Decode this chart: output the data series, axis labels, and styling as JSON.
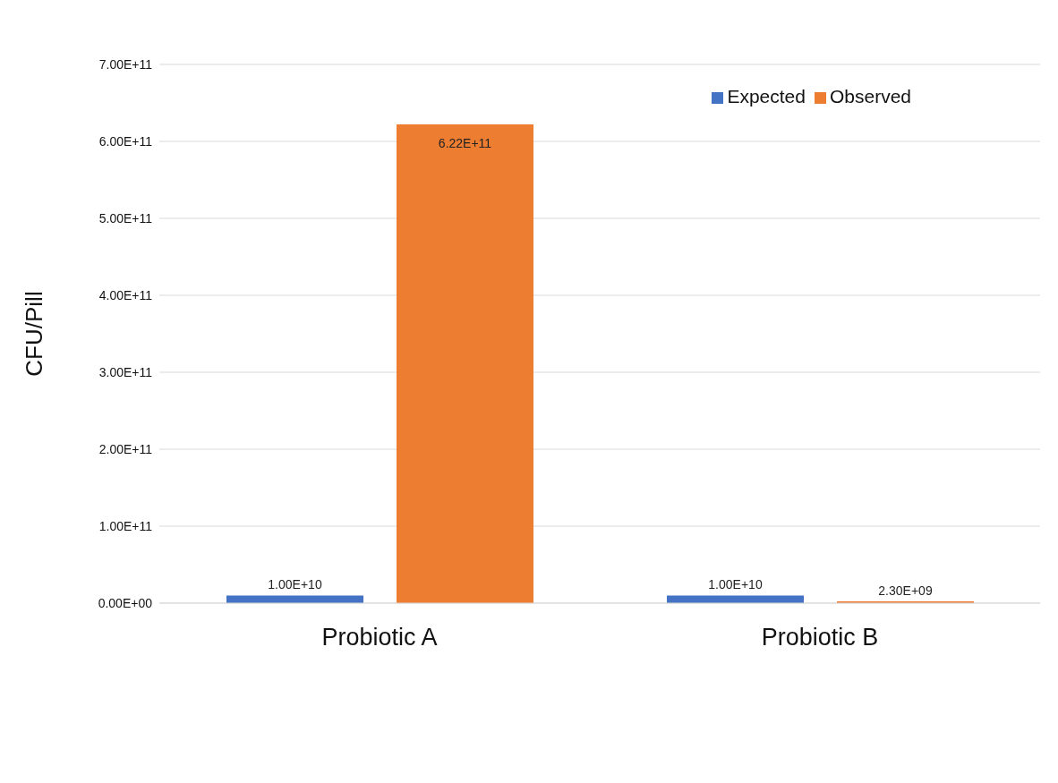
{
  "chart_data": {
    "type": "bar",
    "ylabel": "CFU/Pill",
    "categories": [
      "Probiotic A",
      "Probiotic B"
    ],
    "series": [
      {
        "name": "Expected",
        "color": "#4472c4",
        "values": [
          10000000000,
          10000000000
        ],
        "value_labels": [
          "1.00E+10",
          "1.00E+10"
        ]
      },
      {
        "name": "Observed",
        "color": "#ed7d31",
        "values": [
          622000000000,
          2300000000
        ],
        "value_labels": [
          "6.22E+11",
          "2.30E+09"
        ]
      }
    ],
    "ylim": [
      0,
      700000000000
    ],
    "yticks": [
      {
        "value": 0,
        "label": "0.00E+00"
      },
      {
        "value": 100000000000,
        "label": "1.00E+11"
      },
      {
        "value": 200000000000,
        "label": "2.00E+11"
      },
      {
        "value": 300000000000,
        "label": "3.00E+11"
      },
      {
        "value": 400000000000,
        "label": "4.00E+11"
      },
      {
        "value": 500000000000,
        "label": "5.00E+11"
      },
      {
        "value": 600000000000,
        "label": "6.00E+11"
      },
      {
        "value": 700000000000,
        "label": "7.00E+11"
      }
    ],
    "grid": "y",
    "legend": "top right"
  }
}
